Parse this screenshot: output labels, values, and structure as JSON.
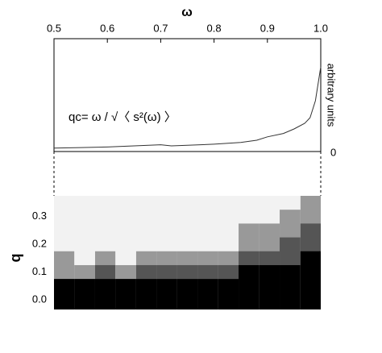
{
  "chart_data": [
    {
      "type": "line",
      "xlabel": "ω",
      "ylabel": "arbitrary units",
      "annotation": "qc= ω / √〈 s²(ω) 〉",
      "x": [
        0.5,
        0.55,
        0.6,
        0.65,
        0.7,
        0.72,
        0.75,
        0.8,
        0.85,
        0.88,
        0.9,
        0.93,
        0.95,
        0.97,
        0.98,
        0.99,
        1.0
      ],
      "values": [
        0.03,
        0.035,
        0.04,
        0.05,
        0.06,
        0.05,
        0.055,
        0.065,
        0.08,
        0.1,
        0.13,
        0.16,
        0.2,
        0.25,
        0.3,
        0.45,
        0.75
      ],
      "color": "#333333",
      "xlim": [
        0.5,
        1.0
      ],
      "xticks": [
        0.5,
        0.6,
        0.7,
        0.8,
        0.9,
        {
          "value": 1.0,
          "label": "1.0"
        }
      ],
      "ylim": [
        0,
        1
      ],
      "yticks": [
        0
      ]
    },
    {
      "type": "heatmap",
      "ylabel": "q",
      "bins": [
        0.5,
        0.538,
        0.577,
        0.615,
        0.654,
        0.692,
        0.731,
        0.769,
        0.808,
        0.846,
        0.885,
        0.923,
        0.962,
        1.0
      ],
      "levels": [
        {
          "color": "#000000",
          "values": [
            0.075,
            0.075,
            0.075,
            0.075,
            0.075,
            0.075,
            0.075,
            0.075,
            0.075,
            0.125,
            0.125,
            0.125,
            0.175
          ]
        },
        {
          "color": "#555555",
          "values": [
            0.075,
            0.075,
            0.125,
            0.075,
            0.125,
            0.125,
            0.125,
            0.125,
            0.125,
            0.175,
            0.175,
            0.225,
            0.275
          ]
        },
        {
          "color": "#999999",
          "values": [
            0.175,
            0.125,
            0.175,
            0.125,
            0.175,
            0.175,
            0.175,
            0.175,
            0.175,
            0.275,
            0.275,
            0.325,
            0.375
          ]
        }
      ],
      "background": "#f2f2f2",
      "xlim": [
        0.5,
        1.0
      ],
      "ylim": [
        -0.035,
        0.375
      ],
      "yticks": [
        {
          "value": 0,
          "label": "0.0"
        },
        0.1,
        0.2,
        0.3
      ]
    }
  ]
}
